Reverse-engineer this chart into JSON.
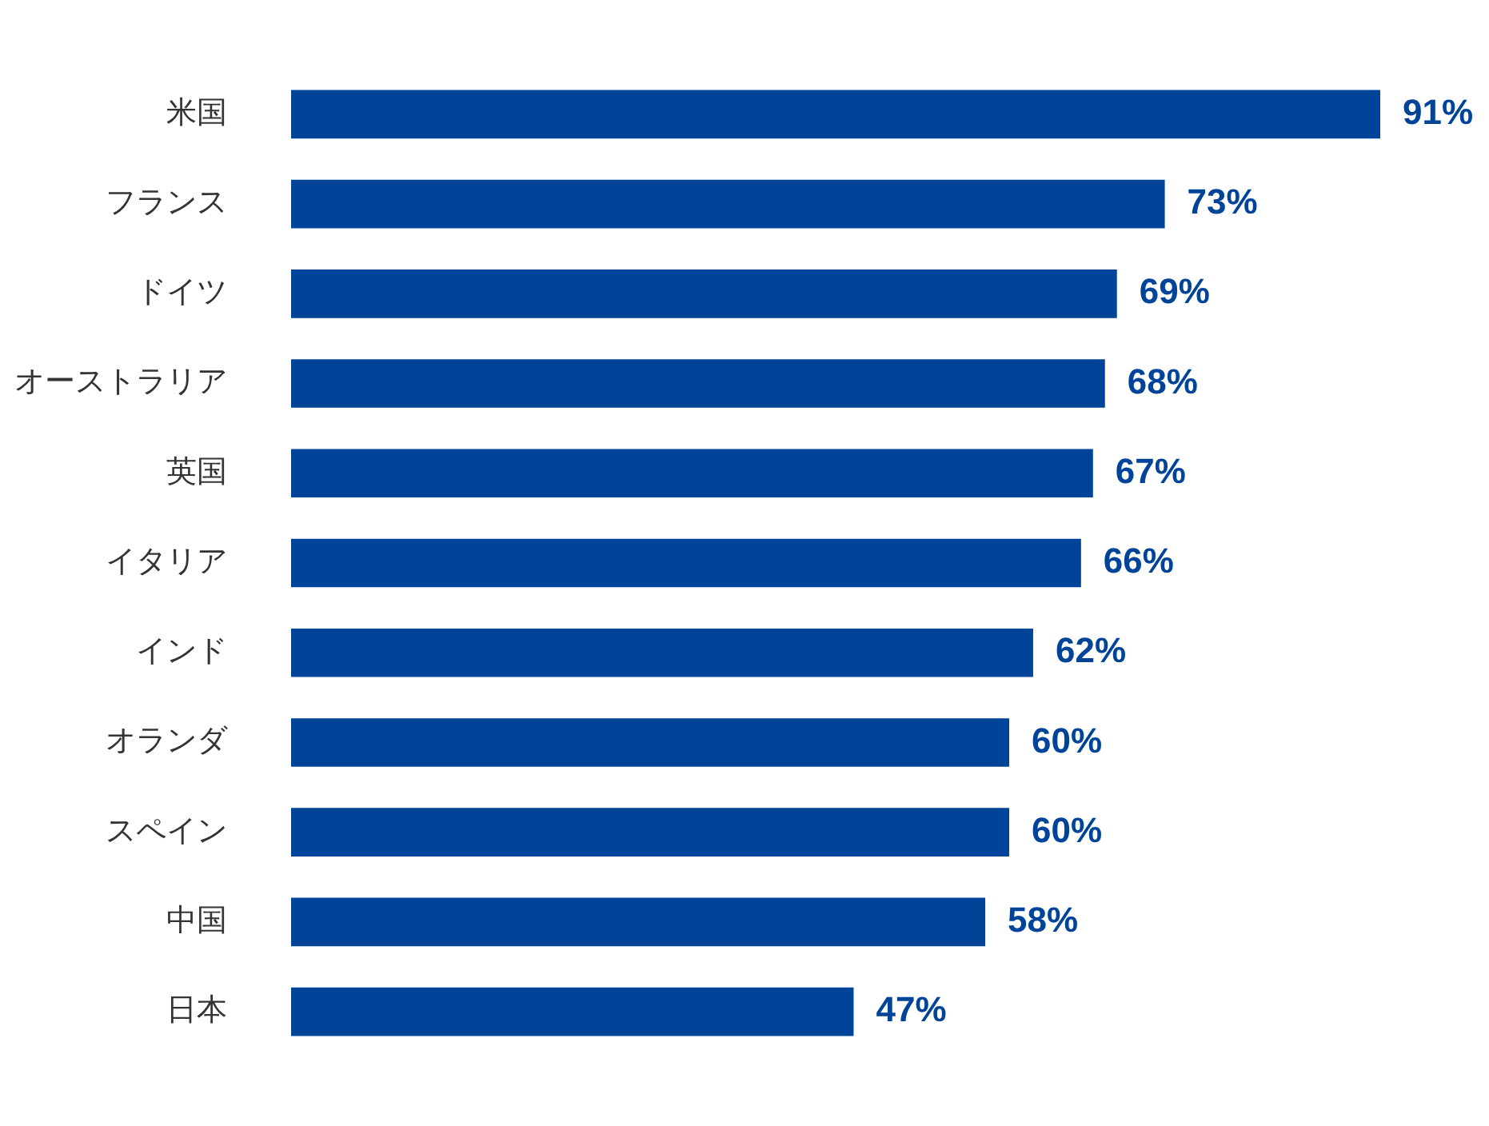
{
  "chart_data": {
    "type": "bar",
    "orientation": "horizontal",
    "categories": [
      "米国",
      "フランス",
      "ドイツ",
      "オーストラリア",
      "英国",
      "イタリア",
      "インド",
      "オランダ",
      "スペイン",
      "中国",
      "日本"
    ],
    "values": [
      91,
      73,
      69,
      68,
      67,
      66,
      62,
      60,
      60,
      58,
      47
    ],
    "value_labels": [
      "91%",
      "73%",
      "69%",
      "68%",
      "67%",
      "66%",
      "62%",
      "60%",
      "60%",
      "58%",
      "47%"
    ],
    "color": "#00449a",
    "tick_labels": "y"
  }
}
